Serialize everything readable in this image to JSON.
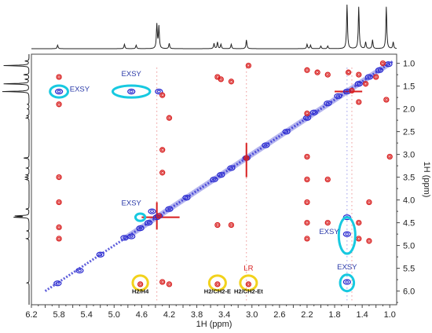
{
  "chart_data": {
    "type": "scatter",
    "title": "",
    "subtitle": "",
    "xlabel": "1H (ppm)",
    "ylabel": "1H (ppm)",
    "xlim": [
      6.2,
      0.9
    ],
    "ylim": [
      0.8,
      6.3
    ],
    "x_reversed": true,
    "y_reversed": true,
    "x_ticks": [
      "6.2",
      "6.0",
      "5.8",
      "5.6",
      "5.4",
      "5.2",
      "5.0",
      "4.8",
      "4.6",
      "4.4",
      "4.2",
      "4.0",
      "3.8",
      "3.6",
      "3.4",
      "3.2",
      "3.0",
      "2.8",
      "2.6",
      "2.4",
      "2.2",
      "2.0",
      "1.8",
      "1.6",
      "1.4",
      "1.2",
      "1.0"
    ],
    "y_ticks": [
      "1.0",
      "1.5",
      "2.0",
      "2.5",
      "3.0",
      "3.5",
      "4.0",
      "4.5",
      "5.0",
      "5.5",
      "6.0"
    ],
    "grid": false,
    "legend": "none",
    "colors": {
      "positive": "#2a2ad0",
      "negative": "#d81e1e",
      "exsy": "#17c9e0",
      "noe": "#f2d21c",
      "spectrum": "#222222"
    },
    "series": [
      {
        "color": "blue",
        "points": [
          {
            "x": 5.82,
            "y": 5.83
          },
          {
            "x": 5.5,
            "y": 5.55
          },
          {
            "x": 5.2,
            "y": 5.2
          },
          {
            "x": 4.85,
            "y": 4.83
          },
          {
            "x": 4.75,
            "y": 4.8
          },
          {
            "x": 4.62,
            "y": 4.62
          },
          {
            "x": 4.5,
            "y": 4.5
          },
          {
            "x": 4.38,
            "y": 4.38
          },
          {
            "x": 4.35,
            "y": 4.35
          },
          {
            "x": 4.2,
            "y": 4.2
          },
          {
            "x": 3.95,
            "y": 3.95
          },
          {
            "x": 3.55,
            "y": 3.55
          },
          {
            "x": 3.45,
            "y": 3.45
          },
          {
            "x": 3.3,
            "y": 3.3
          },
          {
            "x": 3.08,
            "y": 3.08
          },
          {
            "x": 2.8,
            "y": 2.8
          },
          {
            "x": 2.5,
            "y": 2.5
          },
          {
            "x": 2.2,
            "y": 2.2
          },
          {
            "x": 2.1,
            "y": 2.08
          },
          {
            "x": 1.9,
            "y": 1.88
          },
          {
            "x": 1.75,
            "y": 1.72
          },
          {
            "x": 1.62,
            "y": 1.62
          },
          {
            "x": 1.45,
            "y": 1.45
          },
          {
            "x": 1.3,
            "y": 1.3
          },
          {
            "x": 1.15,
            "y": 1.15
          },
          {
            "x": 1.02,
            "y": 1.02
          },
          {
            "x": 5.8,
            "y": 1.62
          },
          {
            "x": 4.75,
            "y": 1.62
          },
          {
            "x": 4.45,
            "y": 4.25
          },
          {
            "x": 1.62,
            "y": 4.75
          },
          {
            "x": 1.62,
            "y": 5.8
          },
          {
            "x": 4.35,
            "y": 1.62
          },
          {
            "x": 1.62,
            "y": 4.38
          }
        ]
      },
      {
        "color": "red",
        "points": [
          {
            "x": 5.8,
            "y": 1.3
          },
          {
            "x": 5.8,
            "y": 1.9
          },
          {
            "x": 5.8,
            "y": 3.5
          },
          {
            "x": 5.8,
            "y": 4.05
          },
          {
            "x": 5.8,
            "y": 4.6
          },
          {
            "x": 5.8,
            "y": 4.85
          },
          {
            "x": 4.35,
            "y": 4.35
          },
          {
            "x": 4.3,
            "y": 1.7
          },
          {
            "x": 4.3,
            "y": 2.9
          },
          {
            "x": 4.3,
            "y": 3.4
          },
          {
            "x": 4.3,
            "y": 5.8
          },
          {
            "x": 4.2,
            "y": 2.2
          },
          {
            "x": 4.2,
            "y": 5.85
          },
          {
            "x": 4.62,
            "y": 5.85
          },
          {
            "x": 3.5,
            "y": 1.3
          },
          {
            "x": 3.45,
            "y": 1.35
          },
          {
            "x": 3.3,
            "y": 1.4
          },
          {
            "x": 3.05,
            "y": 1.05
          },
          {
            "x": 3.5,
            "y": 4.55
          },
          {
            "x": 3.3,
            "y": 4.55
          },
          {
            "x": 3.5,
            "y": 5.85
          },
          {
            "x": 3.05,
            "y": 5.85
          },
          {
            "x": 3.08,
            "y": 3.08
          },
          {
            "x": 2.2,
            "y": 1.15
          },
          {
            "x": 2.2,
            "y": 2.1
          },
          {
            "x": 2.2,
            "y": 3.05
          },
          {
            "x": 2.2,
            "y": 3.55
          },
          {
            "x": 2.2,
            "y": 4.05
          },
          {
            "x": 2.2,
            "y": 4.5
          },
          {
            "x": 2.2,
            "y": 4.85
          },
          {
            "x": 2.05,
            "y": 1.2
          },
          {
            "x": 1.9,
            "y": 1.25
          },
          {
            "x": 1.9,
            "y": 3.55
          },
          {
            "x": 1.9,
            "y": 4.5
          },
          {
            "x": 1.6,
            "y": 1.2
          },
          {
            "x": 1.55,
            "y": 1.6
          },
          {
            "x": 1.45,
            "y": 1.25
          },
          {
            "x": 1.45,
            "y": 1.85
          },
          {
            "x": 1.45,
            "y": 4.5
          },
          {
            "x": 1.45,
            "y": 4.85
          },
          {
            "x": 1.35,
            "y": 1.45
          },
          {
            "x": 1.2,
            "y": 1.3
          },
          {
            "x": 1.1,
            "y": 1.0
          },
          {
            "x": 1.0,
            "y": 3.05
          },
          {
            "x": 1.3,
            "y": 4.05
          },
          {
            "x": 1.3,
            "y": 4.9
          },
          {
            "x": 1.05,
            "y": 1.8
          }
        ]
      }
    ],
    "annotations": [
      {
        "text": "EXSY",
        "x": 5.5,
        "y": 1.62,
        "color": "blue"
      },
      {
        "text": "EXSY",
        "x": 4.75,
        "y": 1.28,
        "color": "blue"
      },
      {
        "text": "EXSY",
        "x": 4.75,
        "y": 4.12,
        "color": "blue"
      },
      {
        "text": "EXSY",
        "x": 1.88,
        "y": 4.75,
        "color": "blue"
      },
      {
        "text": "EXSY",
        "x": 1.62,
        "y": 5.52,
        "color": "blue"
      },
      {
        "text": "LR",
        "x": 3.05,
        "y": 5.55,
        "color": "red"
      },
      {
        "text": "H2/H4",
        "x": 4.62,
        "y": 6.05,
        "color": "black"
      },
      {
        "text": "H2/CH2-E",
        "x": 3.5,
        "y": 6.05,
        "color": "black"
      },
      {
        "text": "H2/CH2-Et",
        "x": 3.05,
        "y": 6.05,
        "color": "black"
      }
    ],
    "highlights": [
      {
        "label": "exsy",
        "x": 5.8,
        "y": 1.62,
        "rx_ppm": 0.13,
        "ry_ppm": 0.13
      },
      {
        "label": "exsy",
        "x": 4.75,
        "y": 1.62,
        "rx_ppm": 0.27,
        "ry_ppm": 0.13
      },
      {
        "label": "exsy",
        "x": 4.62,
        "y": 4.38,
        "rx_ppm": 0.07,
        "ry_ppm": 0.08
      },
      {
        "label": "exsy",
        "x": 1.62,
        "y": 4.78,
        "rx_ppm": 0.12,
        "ry_ppm": 0.4
      },
      {
        "label": "exsy",
        "x": 1.62,
        "y": 5.82,
        "rx_ppm": 0.1,
        "ry_ppm": 0.18
      },
      {
        "label": "noe",
        "x": 4.62,
        "y": 5.82,
        "rx_ppm": 0.11,
        "ry_ppm": 0.16
      },
      {
        "label": "noe",
        "x": 3.5,
        "y": 5.82,
        "rx_ppm": 0.12,
        "ry_ppm": 0.16
      },
      {
        "label": "noe",
        "x": 3.05,
        "y": 5.82,
        "rx_ppm": 0.12,
        "ry_ppm": 0.16
      }
    ],
    "projection_peaks": [
      {
        "ppm": 5.82,
        "h": 0.08
      },
      {
        "ppm": 4.85,
        "h": 0.1
      },
      {
        "ppm": 4.68,
        "h": 0.08
      },
      {
        "ppm": 4.38,
        "h": 0.55
      },
      {
        "ppm": 4.35,
        "h": 0.5
      },
      {
        "ppm": 4.2,
        "h": 0.12
      },
      {
        "ppm": 3.55,
        "h": 0.12
      },
      {
        "ppm": 3.5,
        "h": 0.15
      },
      {
        "ppm": 3.45,
        "h": 0.1
      },
      {
        "ppm": 3.3,
        "h": 0.1
      },
      {
        "ppm": 3.08,
        "h": 0.2
      },
      {
        "ppm": 2.2,
        "h": 0.1
      },
      {
        "ppm": 2.15,
        "h": 0.08
      },
      {
        "ppm": 2.0,
        "h": 0.06
      },
      {
        "ppm": 1.9,
        "h": 0.06
      },
      {
        "ppm": 1.62,
        "h": 1.0
      },
      {
        "ppm": 1.45,
        "h": 0.95
      },
      {
        "ppm": 1.35,
        "h": 0.15
      },
      {
        "ppm": 1.25,
        "h": 0.2
      },
      {
        "ppm": 1.05,
        "h": 0.95
      },
      {
        "ppm": 0.95,
        "h": 0.15
      }
    ]
  }
}
